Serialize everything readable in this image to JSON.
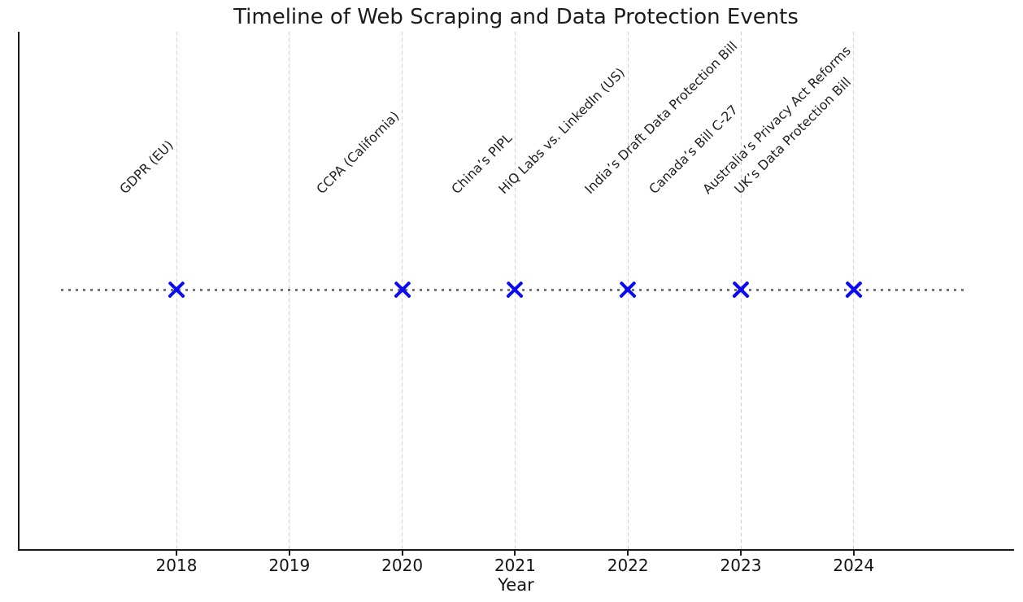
{
  "title": "Timeline of Web Scraping and Data Protection Events",
  "chart_data": {
    "type": "scatter",
    "title": "Timeline of Web Scraping and Data Protection Events",
    "xlabel": "Year",
    "ylabel": "",
    "x_ticks": [
      2018,
      2019,
      2020,
      2021,
      2022,
      2023,
      2024
    ],
    "xlim": [
      2016.6,
      2025.4
    ],
    "grid": {
      "visible": true,
      "axis": "x",
      "style": "dashed",
      "color": "#cbcbcb"
    },
    "legend": "none",
    "marker": {
      "style": "x",
      "color": "#0a0af0"
    },
    "timeline_line": {
      "style": "dotted",
      "color": "#757575"
    },
    "events": [
      {
        "label": "GDPR (EU)",
        "year": 2018
      },
      {
        "label": "CCPA (California)",
        "year": 2020
      },
      {
        "label": "China’s PIPL",
        "year": 2021
      },
      {
        "label": "HiQ Labs vs. LinkedIn (US)",
        "year": 2022
      },
      {
        "label": "India’s Draft Data Protection Bill",
        "year": 2023
      },
      {
        "label": "Canada’s Bill C-27",
        "year": 2023
      },
      {
        "label": "Australia’s Privacy Act Reforms",
        "year": 2024
      },
      {
        "label": "UK’s Data Protection Bill",
        "year": 2024
      }
    ]
  }
}
